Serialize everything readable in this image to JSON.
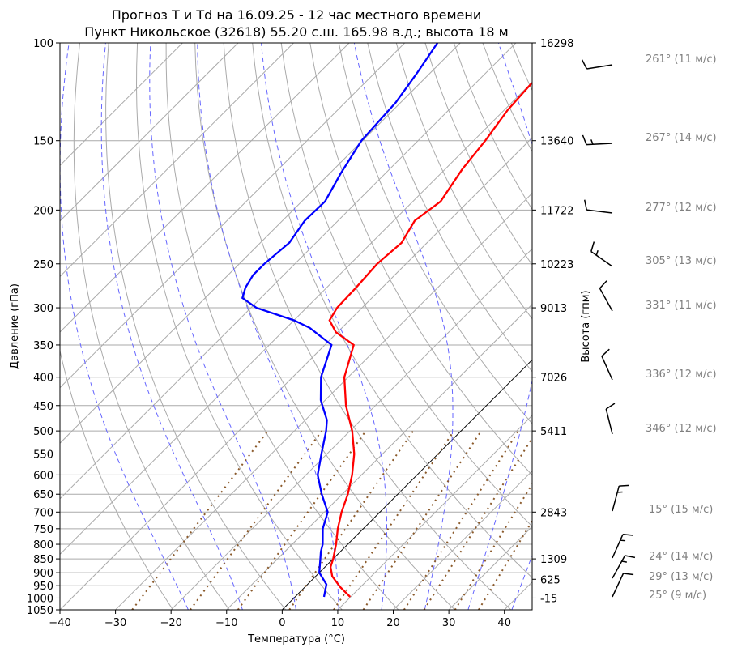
{
  "chart_data": {
    "type": "line",
    "title": [
      "Прогноз T и Td на 16.09.25 - 12 час местного времени",
      "Пункт Никольское (32618) 55.20 с.ш. 165.98 в.д.; высота 18 м"
    ],
    "xlabel": "Температура (°C)",
    "ylabel": "Давление (гПа)",
    "ylabel_right": "Высота (гпм)",
    "xlim": [
      -40,
      45
    ],
    "ylim": [
      1050,
      100
    ],
    "x_ticks": [
      -40,
      -30,
      -20,
      -10,
      0,
      10,
      20,
      30,
      40
    ],
    "y_ticks": [
      100,
      150,
      200,
      250,
      300,
      350,
      400,
      450,
      500,
      550,
      600,
      650,
      700,
      750,
      800,
      850,
      900,
      950,
      1000,
      1050
    ],
    "height_ticks": [
      {
        "p": 100,
        "label": "16298"
      },
      {
        "p": 150,
        "label": "13640"
      },
      {
        "p": 200,
        "label": "11722"
      },
      {
        "p": 250,
        "label": "10223"
      },
      {
        "p": 300,
        "label": "9013"
      },
      {
        "p": 400,
        "label": "7026"
      },
      {
        "p": 500,
        "label": "5411"
      },
      {
        "p": 700,
        "label": "2843"
      },
      {
        "p": 850,
        "label": "1309"
      },
      {
        "p": 925,
        "label": "625"
      },
      {
        "p": 1000,
        "label": "-15"
      }
    ],
    "series": [
      {
        "name": "T",
        "color": "#ff0000",
        "p": [
          995,
          956,
          914,
          879,
          850,
          800,
          750,
          700,
          650,
          600,
          550,
          500,
          450,
          400,
          350,
          332,
          316,
          300,
          276,
          250,
          229,
          209,
          193,
          169,
          150,
          132,
          118
        ],
        "T": [
          9.9,
          6.4,
          3.0,
          1.0,
          0.0,
          -2.1,
          -4.6,
          -6.9,
          -9.0,
          -11.7,
          -15.1,
          -19.6,
          -25.3,
          -30.7,
          -34.8,
          -40.3,
          -43.6,
          -44.5,
          -44.7,
          -45.2,
          -44.6,
          -46.2,
          -45.0,
          -46.9,
          -47.9,
          -49.4,
          -49.9
        ]
      },
      {
        "name": "Td",
        "color": "#0000ff",
        "p": [
          995,
          945,
          900,
          850,
          825,
          800,
          750,
          700,
          650,
          600,
          550,
          500,
          478,
          440,
          400,
          350,
          326,
          316,
          300,
          288,
          276,
          262,
          250,
          229,
          209,
          193,
          172,
          150,
          128,
          113,
          100
        ],
        "T": [
          5.2,
          3.4,
          0.0,
          -2.3,
          -3.5,
          -4.5,
          -7.3,
          -9.4,
          -13.7,
          -17.9,
          -21.0,
          -24.3,
          -26.1,
          -30.8,
          -34.9,
          -38.8,
          -45.8,
          -50.0,
          -59.0,
          -63.3,
          -64.6,
          -65.5,
          -65.5,
          -64.8,
          -66.0,
          -65.8,
          -68.0,
          -70.2,
          -70.9,
          -72.4,
          -74.1
        ]
      }
    ],
    "winds": [
      {
        "p": 100,
        "dir": 261,
        "speed": 11,
        "label": "261° (11 м/с)"
      },
      {
        "p": 150,
        "dir": 267,
        "speed": 14,
        "label": "267° (14 м/с)"
      },
      {
        "p": 200,
        "dir": 277,
        "speed": 12,
        "label": "277° (12 м/с)"
      },
      {
        "p": 250,
        "dir": 305,
        "speed": 13,
        "label": "305° (13 м/с)"
      },
      {
        "p": 300,
        "dir": 331,
        "speed": 11,
        "label": "331° (11 м/с)"
      },
      {
        "p": 400,
        "dir": 336,
        "speed": 12,
        "label": "336° (12 м/с)"
      },
      {
        "p": 500,
        "dir": 346,
        "speed": 12,
        "label": "346° (12 м/с)"
      },
      {
        "p": 700,
        "dir": 15,
        "speed": 15,
        "label": "15° (15 м/с)"
      },
      {
        "p": 850,
        "dir": 24,
        "speed": 14,
        "label": "24° (14 м/с)"
      },
      {
        "p": 925,
        "dir": 29,
        "speed": 13,
        "label": "29° (13 м/с)"
      },
      {
        "p": 1000,
        "dir": 25,
        "speed": 9,
        "label": "25° (9 м/с)"
      }
    ],
    "grid": true
  }
}
